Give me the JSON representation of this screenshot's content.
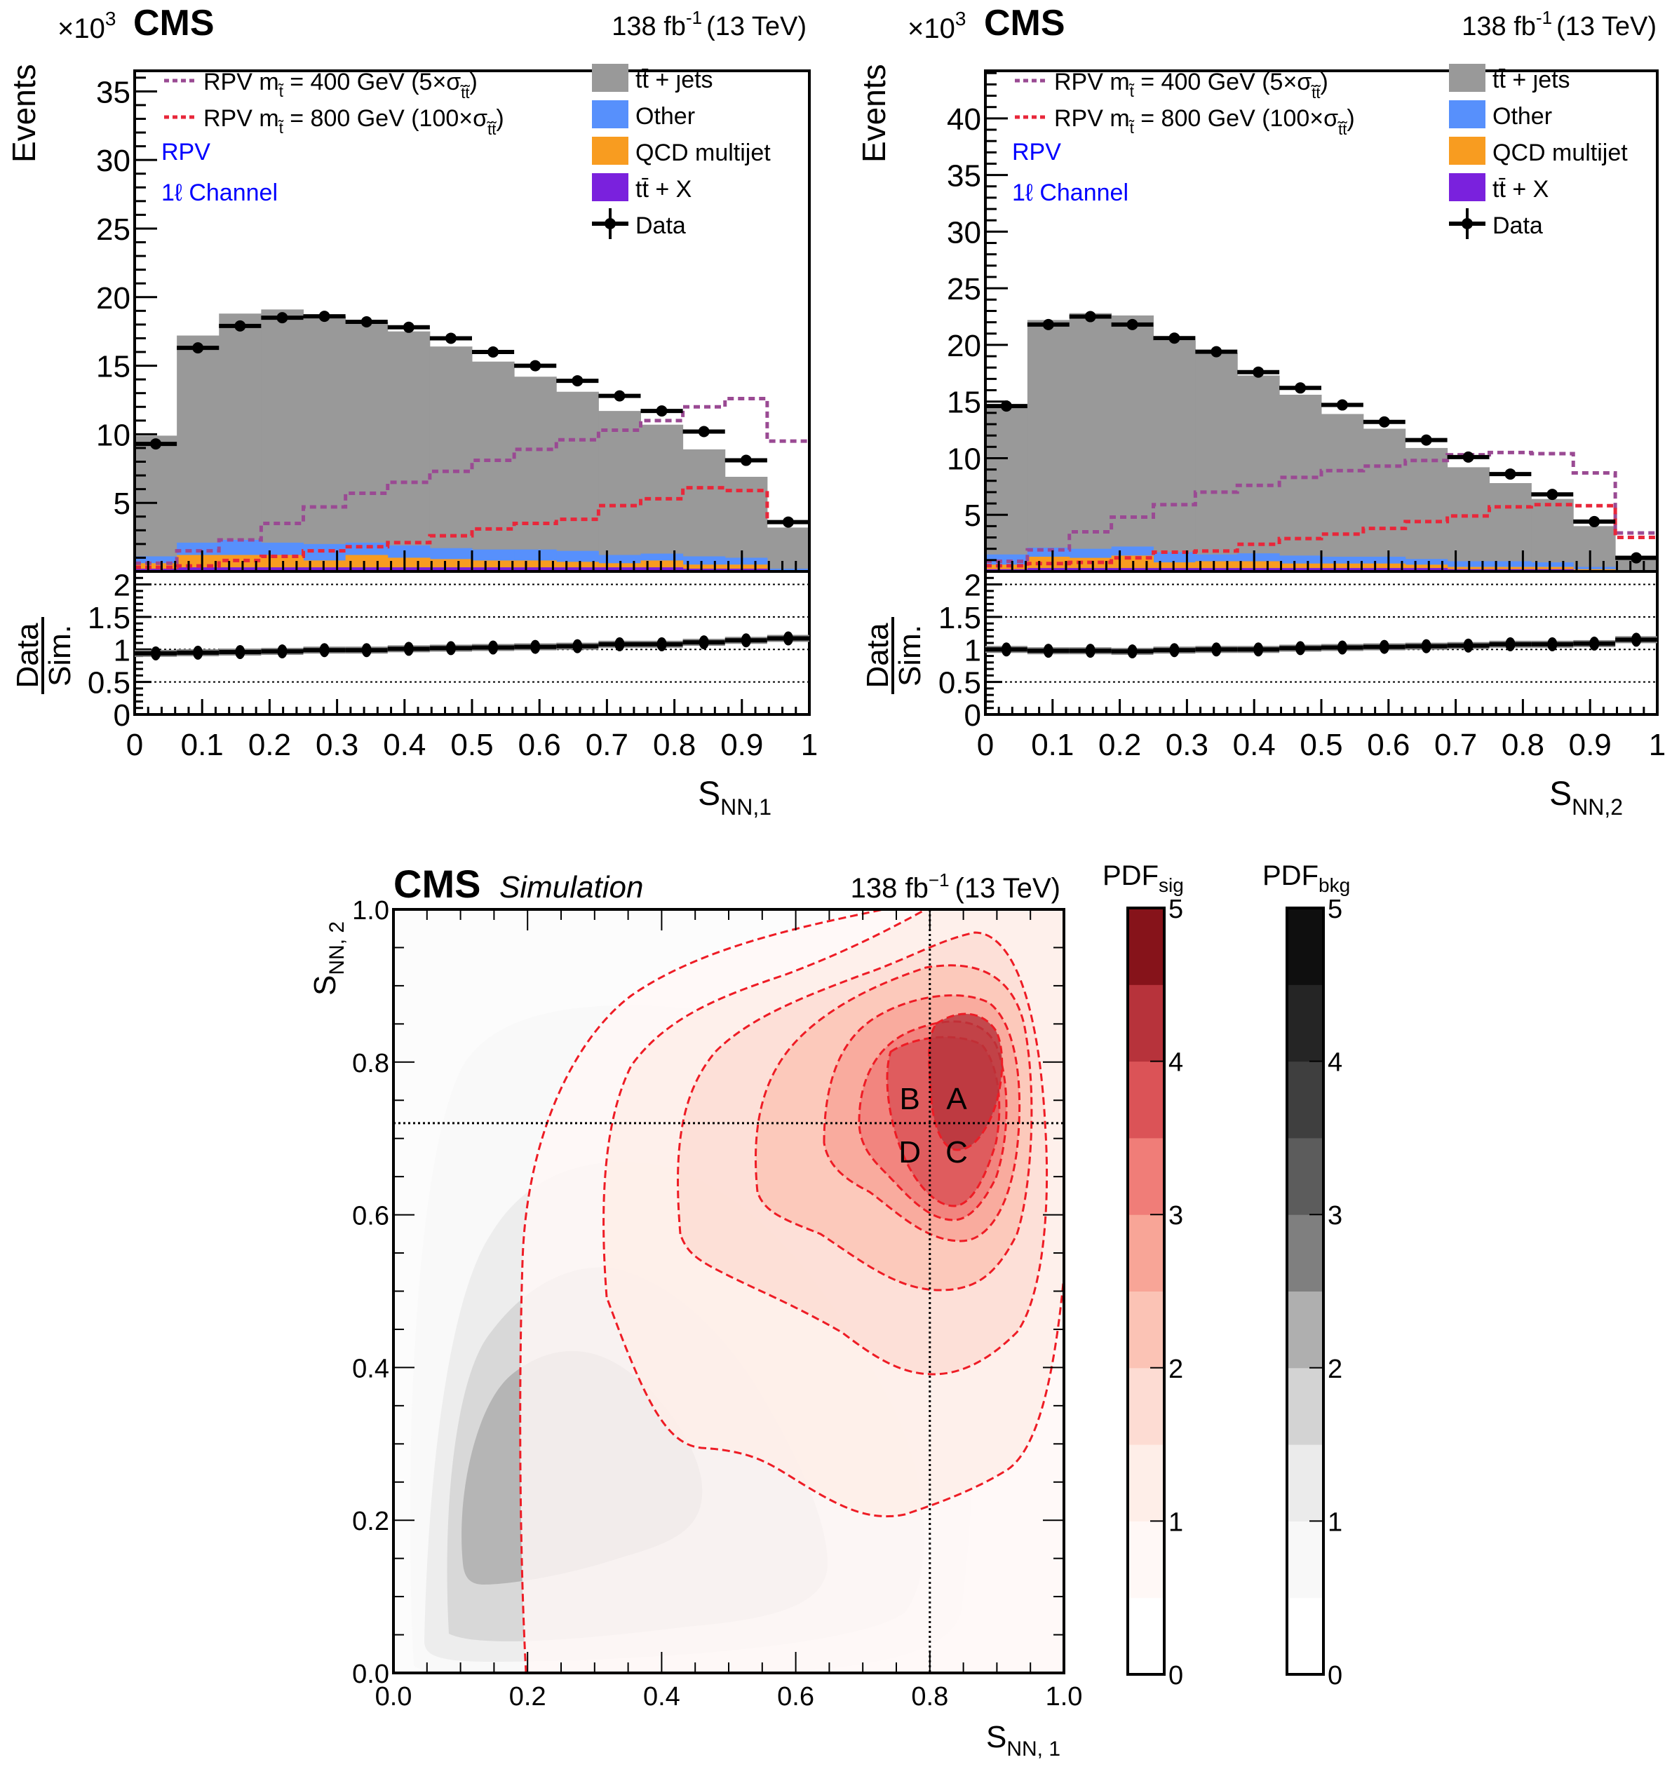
{
  "chart_data": [
    {
      "type": "bar",
      "subtype": "stacked-histogram-with-ratio",
      "id": "snn1",
      "header": {
        "experiment": "CMS",
        "exponent_label": "×10",
        "exponent_power": "3",
        "lumi": "138 fb",
        "lumi_power": "-1",
        "energy": "(13 TeV)"
      },
      "ylabel": "Events",
      "xlabel": "S",
      "xlabel_sub": "NN,1",
      "ratio_ylabel_num": "Data",
      "ratio_ylabel_den": "Sim.",
      "annotations": [
        "RPV",
        "1ℓ Channel"
      ],
      "annotation_color": "#0000ff",
      "x_edges": [
        0,
        0.0625,
        0.125,
        0.1875,
        0.25,
        0.3125,
        0.375,
        0.4375,
        0.5,
        0.5625,
        0.625,
        0.6875,
        0.75,
        0.8125,
        0.875,
        0.9375,
        1.0
      ],
      "xlim": [
        0,
        1
      ],
      "ylim": [
        0,
        36.5
      ],
      "y_scale_factor": 1000,
      "y_ticks": [
        5,
        10,
        15,
        20,
        25,
        30,
        35
      ],
      "x_ticks": [
        "0",
        "0.1",
        "0.2",
        "0.3",
        "0.4",
        "0.5",
        "0.6",
        "0.7",
        "0.8",
        "0.9",
        "1"
      ],
      "ratio_ylim": [
        0,
        2.2
      ],
      "ratio_ticks": [
        "0",
        "0.5",
        "1",
        "1.5",
        "2"
      ],
      "ratio_gridlines": [
        0.5,
        1.0,
        1.5,
        2.0
      ],
      "legend_left": [
        {
          "label": "RPV m",
          "sub": "t̃",
          "rest": " = 400 GeV (5×σ",
          "rest_sub": "t̃t̃",
          "close": ")",
          "color": "#9a4a93",
          "style": "dotted"
        },
        {
          "label": "RPV m",
          "sub": "t̃",
          "rest": " = 800 GeV (100×σ",
          "rest_sub": "t̃t̃",
          "close": ")",
          "color": "#e8273a",
          "style": "dotted"
        }
      ],
      "legend_right": [
        {
          "label": "tt̄ + jets",
          "color": "#999999",
          "kind": "fill"
        },
        {
          "label": "Other",
          "color": "#5790fc",
          "kind": "fill"
        },
        {
          "label": "QCD multijet",
          "color": "#f89c20",
          "kind": "fill"
        },
        {
          "label": "tt̄ + X",
          "color": "#7a21dd",
          "kind": "fill"
        },
        {
          "label": "Data",
          "color": "#000000",
          "kind": "marker"
        }
      ],
      "series": [
        {
          "name": "tt̄ + X",
          "color": "#7a21dd",
          "values": [
            0.2,
            0.3,
            0.3,
            0.3,
            0.3,
            0.3,
            0.3,
            0.3,
            0.3,
            0.3,
            0.3,
            0.3,
            0.3,
            0.2,
            0.2,
            0.05
          ]
        },
        {
          "name": "QCD multijet",
          "color": "#f89c20",
          "values": [
            0.4,
            0.9,
            0.9,
            0.9,
            0.5,
            0.9,
            0.7,
            0.6,
            0.5,
            0.5,
            0.4,
            0.3,
            0.5,
            0.3,
            0.3,
            0.05
          ]
        },
        {
          "name": "Other",
          "color": "#5790fc",
          "values": [
            0.5,
            0.9,
            1.1,
            0.9,
            1.2,
            0.9,
            0.9,
            0.8,
            0.8,
            0.8,
            0.8,
            0.6,
            0.5,
            0.6,
            0.5,
            0.1
          ]
        },
        {
          "name": "tt̄ + jets",
          "color": "#999999",
          "values": [
            8.8,
            15.1,
            16.5,
            17.0,
            16.6,
            16.1,
            15.6,
            14.7,
            13.7,
            12.6,
            11.6,
            10.5,
            9.4,
            7.8,
            5.9,
            3.0
          ]
        }
      ],
      "data": {
        "name": "Data",
        "values": [
          9.3,
          16.3,
          17.9,
          18.5,
          18.6,
          18.2,
          17.8,
          17.0,
          16.0,
          15.0,
          13.9,
          12.8,
          11.7,
          10.2,
          8.1,
          3.6
        ]
      },
      "signals": [
        {
          "name": "RPV m_t̃ = 400 GeV (5×σ)",
          "color": "#9a4a93",
          "values": [
            0.6,
            1.5,
            2.3,
            3.5,
            4.7,
            5.7,
            6.5,
            7.3,
            8.1,
            8.9,
            9.6,
            10.3,
            11.0,
            12.0,
            12.6,
            9.5
          ]
        },
        {
          "name": "RPV m_t̃ = 800 GeV (100×σ)",
          "color": "#e8273a",
          "values": [
            0.3,
            0.4,
            0.8,
            1.1,
            1.5,
            1.8,
            2.1,
            2.6,
            3.1,
            3.5,
            3.8,
            4.8,
            5.3,
            6.1,
            5.9,
            3.6
          ]
        }
      ],
      "ratio": [
        0.94,
        0.95,
        0.96,
        0.97,
        0.99,
        0.99,
        1.01,
        1.02,
        1.03,
        1.04,
        1.05,
        1.08,
        1.08,
        1.11,
        1.14,
        1.17
      ]
    },
    {
      "type": "bar",
      "subtype": "stacked-histogram-with-ratio",
      "id": "snn2",
      "header": {
        "experiment": "CMS",
        "exponent_label": "×10",
        "exponent_power": "3",
        "lumi": "138 fb",
        "lumi_power": "-1",
        "energy": "(13 TeV)"
      },
      "ylabel": "Events",
      "xlabel": "S",
      "xlabel_sub": "NN,2",
      "ratio_ylabel_num": "Data",
      "ratio_ylabel_den": "Sim.",
      "annotations": [
        "RPV",
        "1ℓ Channel"
      ],
      "annotation_color": "#0000ff",
      "x_edges": [
        0,
        0.0625,
        0.125,
        0.1875,
        0.25,
        0.3125,
        0.375,
        0.4375,
        0.5,
        0.5625,
        0.625,
        0.6875,
        0.75,
        0.8125,
        0.875,
        0.9375,
        1.0
      ],
      "xlim": [
        0,
        1
      ],
      "ylim": [
        0,
        44.2
      ],
      "y_scale_factor": 1000,
      "y_ticks": [
        5,
        10,
        15,
        20,
        25,
        30,
        35,
        40
      ],
      "x_ticks": [
        "0",
        "0.1",
        "0.2",
        "0.3",
        "0.4",
        "0.5",
        "0.6",
        "0.7",
        "0.8",
        "0.9",
        "1"
      ],
      "ratio_ylim": [
        0,
        2.2
      ],
      "ratio_ticks": [
        "0",
        "0.5",
        "1",
        "1.5",
        "2"
      ],
      "ratio_gridlines": [
        0.5,
        1.0,
        1.5,
        2.0
      ],
      "legend_left": [
        {
          "label": "RPV m",
          "sub": "t̃",
          "rest": " = 400 GeV (5×σ",
          "rest_sub": "t̃t̃",
          "close": ")",
          "color": "#9a4a93",
          "style": "dotted"
        },
        {
          "label": "RPV m",
          "sub": "t̃",
          "rest": " = 800 GeV (100×σ",
          "rest_sub": "t̃t̃",
          "close": ")",
          "color": "#e8273a",
          "style": "dotted"
        }
      ],
      "legend_right": [
        {
          "label": "tt̄ + jets",
          "color": "#999999",
          "kind": "fill"
        },
        {
          "label": "Other",
          "color": "#5790fc",
          "kind": "fill"
        },
        {
          "label": "QCD multijet",
          "color": "#f89c20",
          "kind": "fill"
        },
        {
          "label": "tt̄ + X",
          "color": "#7a21dd",
          "kind": "fill"
        },
        {
          "label": "Data",
          "color": "#000000",
          "kind": "marker"
        }
      ],
      "series": [
        {
          "name": "tt̄ + X",
          "color": "#7a21dd",
          "values": [
            0.2,
            0.3,
            0.3,
            0.3,
            0.3,
            0.3,
            0.3,
            0.3,
            0.3,
            0.3,
            0.3,
            0.2,
            0.2,
            0.2,
            0.1,
            0.05
          ]
        },
        {
          "name": "QCD multijet",
          "color": "#f89c20",
          "values": [
            0.4,
            1.0,
            0.9,
            1.1,
            0.5,
            0.6,
            0.6,
            0.4,
            0.4,
            0.4,
            0.3,
            0.2,
            0.2,
            0.2,
            0.1,
            0.02
          ]
        },
        {
          "name": "Other",
          "color": "#5790fc",
          "values": [
            0.9,
            0.8,
            0.8,
            0.8,
            0.9,
            0.6,
            0.7,
            0.7,
            0.6,
            0.6,
            0.5,
            0.5,
            0.5,
            0.4,
            0.2,
            0.03
          ]
        },
        {
          "name": "tt̄ + jets",
          "color": "#999999",
          "values": [
            13.1,
            20.1,
            20.8,
            20.4,
            18.7,
            17.8,
            15.7,
            14.2,
            12.6,
            11.3,
            9.8,
            8.3,
            6.9,
            5.6,
            3.6,
            1.3
          ]
        }
      ],
      "data": {
        "name": "Data",
        "values": [
          14.6,
          21.8,
          22.5,
          21.8,
          20.6,
          19.4,
          17.6,
          16.2,
          14.7,
          13.2,
          11.6,
          10.1,
          8.6,
          6.8,
          4.4,
          1.2
        ]
      },
      "signals": [
        {
          "name": "RPV m_t̃ = 400 GeV (5×σ)",
          "color": "#9a4a93",
          "values": [
            0.9,
            1.9,
            3.5,
            4.8,
            5.9,
            7.0,
            7.6,
            8.3,
            8.9,
            9.3,
            9.8,
            10.3,
            10.5,
            10.4,
            8.7,
            3.4
          ]
        },
        {
          "name": "RPV m_t̃ = 800 GeV (100×σ)",
          "color": "#e8273a",
          "values": [
            0.5,
            0.7,
            0.8,
            1.2,
            1.7,
            1.8,
            2.4,
            2.9,
            3.3,
            3.8,
            4.4,
            4.9,
            5.7,
            5.9,
            5.8,
            3.0
          ]
        }
      ],
      "ratio": [
        1.0,
        0.98,
        0.98,
        0.97,
        0.99,
        1.0,
        1.0,
        1.02,
        1.03,
        1.04,
        1.05,
        1.06,
        1.08,
        1.08,
        1.09,
        1.15
      ]
    },
    {
      "type": "heatmap",
      "subtype": "filled-contour-2d",
      "id": "abcd",
      "header": {
        "experiment": "CMS",
        "qualifier": "Simulation",
        "lumi": "138 fb",
        "lumi_power": "−1",
        "energy": "(13 TeV)"
      },
      "xlabel": "S",
      "xlabel_sub": "NN, 1",
      "ylabel": "S",
      "ylabel_sub": "NN, 2",
      "xlim": [
        0,
        1
      ],
      "ylim": [
        0,
        1
      ],
      "x_ticks": [
        "0.0",
        "0.2",
        "0.4",
        "0.6",
        "0.8",
        "1.0"
      ],
      "y_ticks": [
        "0.0",
        "0.2",
        "0.4",
        "0.6",
        "0.8",
        "1.0"
      ],
      "boundaries": {
        "x": 0.8,
        "y": 0.72
      },
      "regions": [
        {
          "label": "A",
          "x": 0.84,
          "y": 0.755
        },
        {
          "label": "B",
          "x": 0.77,
          "y": 0.755
        },
        {
          "label": "C",
          "x": 0.84,
          "y": 0.685
        },
        {
          "label": "D",
          "x": 0.77,
          "y": 0.685
        }
      ],
      "signal_pdf": {
        "name": "PDF",
        "sub": "sig",
        "peak": [
          0.85,
          0.84
        ],
        "levels": [
          0.5,
          1.0,
          1.5,
          2.0,
          2.5,
          3.0,
          3.5,
          4.0
        ]
      },
      "background_pdf": {
        "name": "PDF",
        "sub": "bkg",
        "peak": [
          0.23,
          0.2
        ],
        "levels": [
          0.5,
          1.0,
          1.5,
          2.0
        ]
      },
      "colorbars": [
        {
          "title": "PDF",
          "sub": "sig",
          "range": [
            0,
            5
          ],
          "ticks": [
            "0",
            "1",
            "2",
            "3",
            "4",
            "5"
          ],
          "colors": [
            "#ffffff",
            "#fff8f6",
            "#feeee8",
            "#fddcd3",
            "#fbc3b5",
            "#f8a597",
            "#f07d78",
            "#db5357",
            "#b7333b",
            "#86131a"
          ]
        },
        {
          "title": "PDF",
          "sub": "bkg",
          "range": [
            0,
            5
          ],
          "ticks": [
            "0",
            "1",
            "2",
            "3",
            "4",
            "5"
          ],
          "colors": [
            "#ffffff",
            "#f8f8f8",
            "#ebebeb",
            "#d3d3d3",
            "#afafaf",
            "#7f7f7f",
            "#5c5c5c",
            "#3f3f3f",
            "#252525",
            "#0f0f0f"
          ]
        }
      ]
    }
  ]
}
